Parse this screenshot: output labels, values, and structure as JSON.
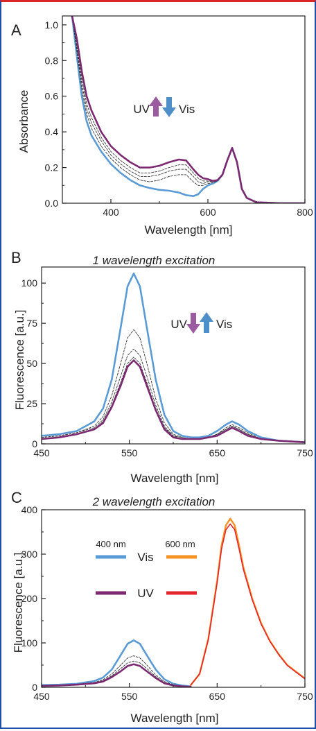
{
  "chart_data": [
    {
      "panel": "A",
      "type": "line",
      "xlabel": "Wavelength [nm]",
      "ylabel": "Absorbance",
      "xlim": [
        300,
        800
      ],
      "ylim": [
        0,
        1.05
      ],
      "xticks": [
        400,
        600,
        800
      ],
      "yticks": [
        0.0,
        0.2,
        0.4,
        0.6,
        0.8,
        1.0
      ],
      "xtick_labels": [
        "400",
        "600",
        "800"
      ],
      "ytick_labels": [
        "0.0",
        "0.2",
        "0.4",
        "0.6",
        "0.8",
        "1.0"
      ],
      "annotation": {
        "left": "UV",
        "right": "Vis"
      },
      "series": [
        {
          "style": "vis",
          "x": [
            320,
            330,
            340,
            350,
            360,
            380,
            400,
            420,
            440,
            460,
            480,
            500,
            520,
            540,
            555,
            570,
            580,
            590,
            600,
            610,
            620,
            630,
            640,
            650,
            660,
            670,
            680,
            700,
            750,
            800
          ],
          "y": [
            1.05,
            0.82,
            0.6,
            0.46,
            0.38,
            0.29,
            0.22,
            0.17,
            0.13,
            0.1,
            0.085,
            0.075,
            0.07,
            0.06,
            0.045,
            0.04,
            0.05,
            0.08,
            0.1,
            0.11,
            0.125,
            0.16,
            0.24,
            0.31,
            0.23,
            0.08,
            0.03,
            0.005,
            0.0,
            0.0
          ]
        },
        {
          "style": "intermediate",
          "x": [
            320,
            330,
            340,
            350,
            360,
            380,
            400,
            420,
            440,
            460,
            480,
            500,
            520,
            540,
            555,
            570,
            580,
            590,
            600,
            610,
            620,
            630,
            640,
            650,
            660,
            670,
            680,
            700,
            750,
            800
          ],
          "y": [
            1.05,
            0.85,
            0.64,
            0.5,
            0.42,
            0.32,
            0.25,
            0.2,
            0.16,
            0.13,
            0.12,
            0.13,
            0.15,
            0.16,
            0.16,
            0.12,
            0.1,
            0.1,
            0.11,
            0.115,
            0.125,
            0.16,
            0.24,
            0.31,
            0.23,
            0.08,
            0.03,
            0.005,
            0.0,
            0.0
          ]
        },
        {
          "style": "intermediate",
          "x": [
            320,
            330,
            340,
            350,
            360,
            380,
            400,
            420,
            440,
            460,
            480,
            500,
            520,
            540,
            555,
            570,
            580,
            590,
            600,
            610,
            620,
            630,
            640,
            650,
            660,
            670,
            680,
            700,
            750,
            800
          ],
          "y": [
            1.05,
            0.87,
            0.67,
            0.53,
            0.45,
            0.35,
            0.27,
            0.22,
            0.18,
            0.15,
            0.15,
            0.16,
            0.18,
            0.19,
            0.19,
            0.15,
            0.12,
            0.11,
            0.12,
            0.12,
            0.127,
            0.16,
            0.24,
            0.31,
            0.23,
            0.08,
            0.03,
            0.005,
            0.0,
            0.0
          ]
        },
        {
          "style": "intermediate",
          "x": [
            320,
            330,
            340,
            350,
            360,
            380,
            400,
            420,
            440,
            460,
            480,
            500,
            520,
            540,
            555,
            570,
            580,
            590,
            600,
            610,
            620,
            630,
            640,
            650,
            660,
            670,
            680,
            700,
            750,
            800
          ],
          "y": [
            1.05,
            0.89,
            0.7,
            0.56,
            0.48,
            0.37,
            0.29,
            0.24,
            0.2,
            0.17,
            0.17,
            0.18,
            0.2,
            0.215,
            0.215,
            0.17,
            0.14,
            0.125,
            0.125,
            0.122,
            0.128,
            0.16,
            0.24,
            0.31,
            0.23,
            0.08,
            0.03,
            0.005,
            0.0,
            0.0
          ]
        },
        {
          "style": "uv",
          "x": [
            320,
            330,
            340,
            350,
            360,
            380,
            400,
            420,
            440,
            460,
            480,
            500,
            520,
            540,
            555,
            570,
            580,
            590,
            600,
            610,
            620,
            630,
            640,
            650,
            660,
            670,
            680,
            700,
            750,
            800
          ],
          "y": [
            1.05,
            0.92,
            0.74,
            0.6,
            0.52,
            0.4,
            0.32,
            0.27,
            0.23,
            0.2,
            0.2,
            0.21,
            0.23,
            0.245,
            0.24,
            0.19,
            0.16,
            0.14,
            0.135,
            0.125,
            0.13,
            0.16,
            0.24,
            0.31,
            0.23,
            0.08,
            0.03,
            0.005,
            0.0,
            0.0
          ]
        }
      ]
    },
    {
      "panel": "B",
      "type": "line",
      "title": "1 wavelength excitation",
      "xlabel": "Wavelength [nm]",
      "ylabel": "Fluorescence [a.u.]",
      "xlim": [
        450,
        750
      ],
      "ylim": [
        0,
        110
      ],
      "xticks": [
        450,
        550,
        650,
        750
      ],
      "yticks": [
        0,
        25,
        50,
        75,
        100
      ],
      "xtick_labels": [
        "450",
        "550",
        "650",
        "750"
      ],
      "ytick_labels": [
        "0",
        "25",
        "50",
        "75",
        "100"
      ],
      "annotation": {
        "left": "UV",
        "right": "Vis"
      },
      "series": [
        {
          "style": "vis",
          "x": [
            450,
            470,
            490,
            510,
            520,
            530,
            540,
            548,
            555,
            562,
            570,
            580,
            590,
            600,
            610,
            620,
            630,
            640,
            650,
            660,
            667,
            675,
            685,
            700,
            720,
            750
          ],
          "y": [
            5,
            6,
            8,
            14,
            22,
            40,
            72,
            98,
            106,
            98,
            72,
            40,
            18,
            8,
            5,
            4,
            4,
            5,
            8,
            12,
            14,
            12,
            8,
            4,
            2,
            1
          ]
        },
        {
          "style": "intermediate",
          "x": [
            450,
            470,
            490,
            510,
            520,
            530,
            540,
            548,
            555,
            562,
            570,
            580,
            590,
            600,
            610,
            620,
            630,
            640,
            650,
            660,
            667,
            675,
            685,
            700,
            720,
            750
          ],
          "y": [
            4,
            5,
            7,
            11,
            17,
            30,
            50,
            66,
            71,
            66,
            50,
            28,
            13,
            6,
            4,
            3,
            3,
            4,
            6,
            10,
            12,
            10,
            7,
            3,
            2,
            1
          ]
        },
        {
          "style": "intermediate",
          "x": [
            450,
            470,
            490,
            510,
            520,
            530,
            540,
            548,
            555,
            562,
            570,
            580,
            590,
            600,
            610,
            620,
            630,
            640,
            650,
            660,
            667,
            675,
            685,
            700,
            720,
            750
          ],
          "y": [
            4,
            5,
            7,
            10,
            15,
            26,
            42,
            55,
            59,
            55,
            42,
            24,
            11,
            5,
            4,
            3,
            3,
            4,
            6,
            9,
            11,
            9,
            6,
            3,
            2,
            1
          ]
        },
        {
          "style": "intermediate",
          "x": [
            450,
            470,
            490,
            510,
            520,
            530,
            540,
            548,
            555,
            562,
            570,
            580,
            590,
            600,
            610,
            620,
            630,
            640,
            650,
            660,
            667,
            675,
            685,
            700,
            720,
            750
          ],
          "y": [
            3,
            4,
            6,
            9,
            14,
            24,
            38,
            50,
            54,
            50,
            38,
            22,
            10,
            5,
            3,
            3,
            3,
            4,
            6,
            9,
            11,
            9,
            6,
            3,
            2,
            1
          ]
        },
        {
          "style": "uv",
          "x": [
            450,
            470,
            490,
            510,
            520,
            530,
            540,
            548,
            555,
            562,
            570,
            580,
            590,
            600,
            610,
            620,
            630,
            640,
            650,
            660,
            667,
            675,
            685,
            700,
            720,
            750
          ],
          "y": [
            3,
            4,
            6,
            9,
            13,
            23,
            36,
            48,
            52,
            48,
            36,
            21,
            9,
            4,
            3,
            3,
            3,
            4,
            5,
            8,
            10,
            8,
            5,
            3,
            2,
            1
          ]
        }
      ]
    },
    {
      "panel": "C",
      "type": "line",
      "title": "2 wavelength excitation",
      "xlabel": "Wavelength [nm]",
      "ylabel": "Fluorescence [a.u.]",
      "xlim": [
        450,
        750
      ],
      "ylim": [
        0,
        400
      ],
      "xticks": [
        450,
        550,
        650,
        750
      ],
      "yticks": [
        0,
        100,
        200,
        300,
        400
      ],
      "xtick_labels": [
        "450",
        "550",
        "650",
        "750"
      ],
      "ytick_labels": [
        "0",
        "100",
        "200",
        "300",
        "400"
      ],
      "legend": {
        "col1_header": "400 nm",
        "col2_header": "600 nm",
        "row1_label": "Vis",
        "row2_label": "UV"
      },
      "series": [
        {
          "style": "vis",
          "x": [
            450,
            470,
            490,
            510,
            520,
            530,
            540,
            548,
            555,
            562,
            570,
            580,
            590,
            600,
            610,
            620
          ],
          "y": [
            5,
            6,
            8,
            14,
            22,
            40,
            72,
            98,
            106,
            98,
            72,
            40,
            18,
            8,
            4,
            2
          ]
        },
        {
          "style": "intermediate",
          "x": [
            450,
            470,
            490,
            510,
            520,
            530,
            540,
            548,
            555,
            562,
            570,
            580,
            590,
            600,
            610,
            620
          ],
          "y": [
            4,
            5,
            7,
            11,
            17,
            30,
            50,
            66,
            71,
            66,
            50,
            28,
            13,
            6,
            3,
            2
          ]
        },
        {
          "style": "intermediate",
          "x": [
            450,
            470,
            490,
            510,
            520,
            530,
            540,
            548,
            555,
            562,
            570,
            580,
            590,
            600,
            610,
            620
          ],
          "y": [
            4,
            5,
            7,
            10,
            15,
            26,
            42,
            55,
            59,
            55,
            42,
            24,
            11,
            5,
            3,
            2
          ]
        },
        {
          "style": "uv",
          "x": [
            450,
            470,
            490,
            510,
            520,
            530,
            540,
            548,
            555,
            562,
            570,
            580,
            590,
            600,
            610,
            620
          ],
          "y": [
            3,
            4,
            6,
            9,
            13,
            23,
            36,
            48,
            52,
            48,
            36,
            21,
            9,
            4,
            2,
            1
          ]
        },
        {
          "style": "vis600",
          "x": [
            620,
            630,
            640,
            650,
            655,
            660,
            665,
            670,
            675,
            680,
            690,
            700,
            710,
            720,
            730,
            740,
            750
          ],
          "y": [
            5,
            30,
            110,
            240,
            320,
            365,
            380,
            365,
            320,
            270,
            200,
            145,
            105,
            75,
            50,
            35,
            20
          ]
        },
        {
          "style": "uv600",
          "x": [
            620,
            630,
            640,
            650,
            655,
            660,
            665,
            670,
            675,
            680,
            690,
            700,
            710,
            720,
            730,
            740,
            750
          ],
          "y": [
            5,
            30,
            108,
            235,
            312,
            355,
            368,
            355,
            312,
            265,
            197,
            143,
            104,
            74,
            49,
            34,
            19
          ]
        }
      ]
    }
  ],
  "colors": {
    "vis": "#5b9bd5",
    "uv": "#7b2a72",
    "intermediate": "#333333",
    "vis600": "#f59323",
    "uv600": "#e4262c",
    "arrow_purple": "#9a5ba0",
    "arrow_blue": "#4f8fc9"
  }
}
